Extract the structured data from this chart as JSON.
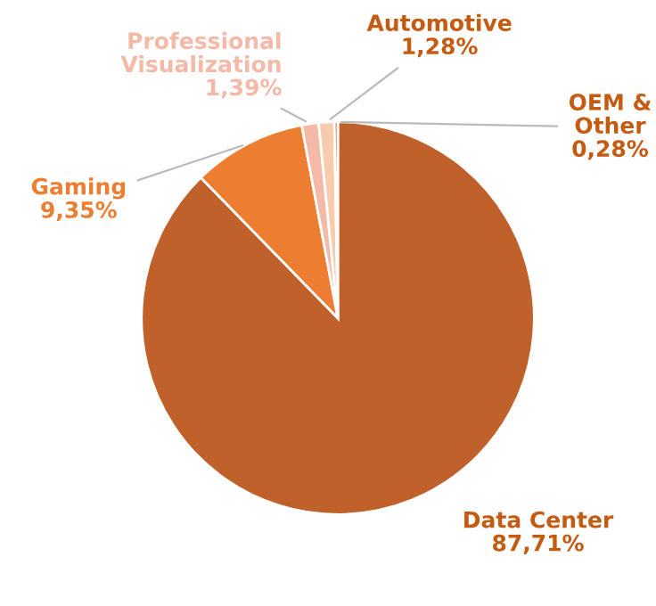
{
  "chart_data": {
    "type": "pie",
    "categories": [
      "Data Center",
      "Gaming",
      "Professional Visualization",
      "Automotive",
      "OEM & Other"
    ],
    "values": [
      87.71,
      9.35,
      1.39,
      1.28,
      0.28
    ],
    "value_labels": [
      "87,71%",
      "9,35%",
      "1,39%",
      "1,28%",
      "0,28%"
    ],
    "colors": [
      "#c0612b",
      "#ed7d31",
      "#f4b9a7",
      "#f8cbad",
      "#e0703c"
    ],
    "legend": false
  }
}
